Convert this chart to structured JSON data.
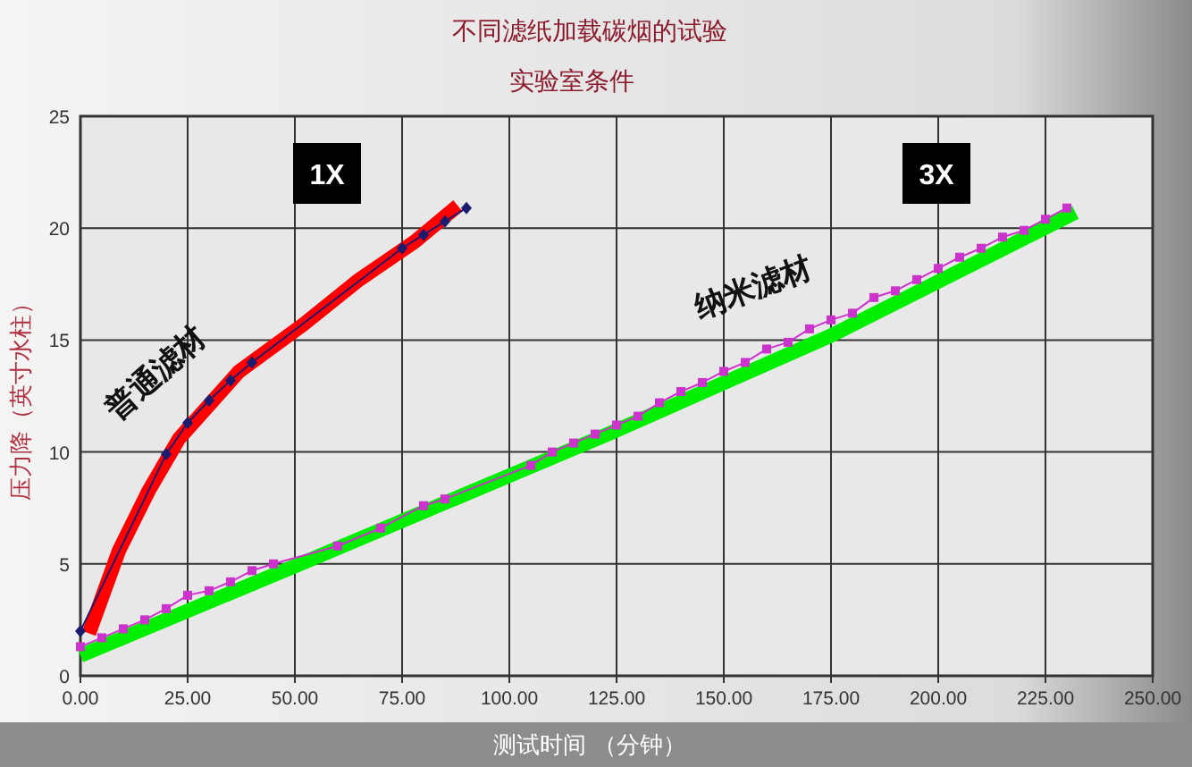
{
  "chart_data": {
    "type": "line",
    "title": "不同滤纸加载碳烟的试验",
    "subtitle": "实验室条件",
    "xlabel": "测试时间 （分钟）",
    "ylabel": "压力降（英寸水柱）",
    "annotations": [
      "1X",
      "3X"
    ],
    "xlim": [
      0,
      250
    ],
    "ylim": [
      0,
      25
    ],
    "xticks": [
      {
        "value": 0,
        "label": "0.00"
      },
      {
        "value": 25,
        "label": "25.00"
      },
      {
        "value": 50,
        "label": "50.00"
      },
      {
        "value": 75,
        "label": "75.00"
      },
      {
        "value": 100,
        "label": "100.00"
      },
      {
        "value": 125,
        "label": "125.00"
      },
      {
        "value": 150,
        "label": "150.00"
      },
      {
        "value": 175,
        "label": "175.00"
      },
      {
        "value": 200,
        "label": "200.00"
      },
      {
        "value": 225,
        "label": "225.00"
      },
      {
        "value": 250,
        "label": "250.00"
      }
    ],
    "yticks": [
      0,
      5,
      10,
      15,
      20,
      25
    ],
    "grid": true,
    "line_style": "solid",
    "series": [
      {
        "type": "line",
        "name": "普通滤材",
        "color": "#ff0000",
        "marker": "none",
        "x": [
          2,
          9,
          16,
          23,
          37,
          52,
          65,
          78,
          88
        ],
        "values": [
          1.9,
          5.6,
          8.3,
          10.6,
          13.6,
          15.7,
          17.7,
          19.4,
          21.0
        ]
      },
      {
        "type": "line",
        "name": "纳米滤材",
        "color": "#00ee00",
        "marker": "none",
        "x": [
          0,
          50,
          123,
          175,
          232
        ],
        "values": [
          0.9,
          4.9,
          10.8,
          15.2,
          20.7
        ]
      },
      {
        "type": "line",
        "color": "#1c1c6e",
        "marker": "diamond",
        "x": [
          0,
          20,
          25,
          30,
          35,
          40,
          75,
          80,
          85,
          90
        ],
        "values": [
          2.0,
          9.9,
          11.3,
          12.3,
          13.2,
          14.0,
          19.1,
          19.7,
          20.3,
          20.9
        ]
      },
      {
        "type": "line",
        "color": "#cc33cc",
        "marker": "square",
        "x": [
          0,
          5,
          10,
          15,
          20,
          25,
          30,
          35,
          40,
          45,
          60,
          70,
          80,
          85,
          105,
          110,
          115,
          120,
          125,
          130,
          135,
          140,
          145,
          150,
          155,
          160,
          165,
          170,
          175,
          180,
          185,
          190,
          195,
          200,
          205,
          210,
          215,
          220,
          225,
          230
        ],
        "values": [
          1.3,
          1.7,
          2.1,
          2.5,
          3.0,
          3.6,
          3.8,
          4.2,
          4.7,
          5.0,
          5.8,
          6.6,
          7.6,
          7.9,
          9.4,
          10.0,
          10.4,
          10.8,
          11.2,
          11.6,
          12.2,
          12.7,
          13.1,
          13.6,
          14.0,
          14.6,
          14.9,
          15.5,
          15.9,
          16.2,
          16.9,
          17.2,
          17.7,
          18.2,
          18.7,
          19.1,
          19.6,
          19.9,
          20.4,
          20.9
        ]
      }
    ]
  }
}
